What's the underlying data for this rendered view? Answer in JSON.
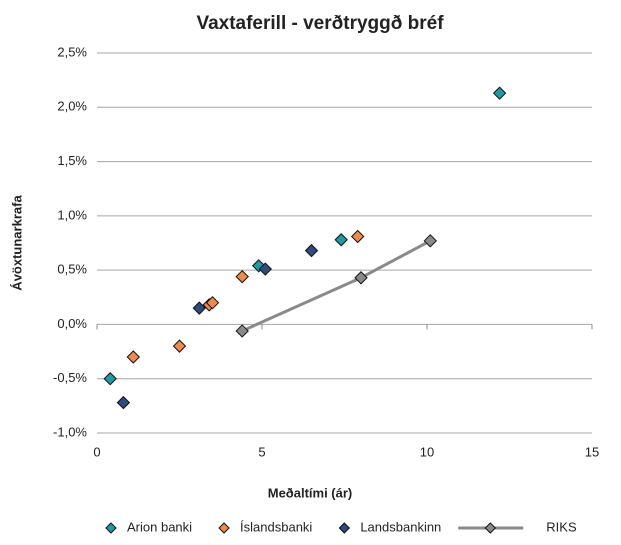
{
  "chart_data": {
    "type": "scatter",
    "title": "Vaxtaferill - verðtryggð bréf",
    "x_label": "Meðaltími (ár)",
    "y_label": "Ávöxtunarkrafa",
    "xlim": [
      0,
      15
    ],
    "xticks": [
      0,
      5,
      10,
      15
    ],
    "ylim": [
      -1.0,
      2.5
    ],
    "yticks": [
      {
        "value": -1.0,
        "label": "-1,0%"
      },
      {
        "value": -0.5,
        "label": "-0,5%"
      },
      {
        "value": 0,
        "label": "0,0%"
      },
      {
        "value": 0.5,
        "label": "0,5%"
      },
      {
        "value": 1.0,
        "label": "1,0%"
      },
      {
        "value": 1.5,
        "label": "1,5%"
      },
      {
        "value": 2.0,
        "label": "2,0%"
      },
      {
        "value": 2.5,
        "label": "2,5%"
      }
    ],
    "grid": true,
    "legend": "bottom",
    "series": [
      {
        "name": "Arion banki",
        "color": "#1e9aa5",
        "line": false,
        "x": [
          0.4,
          4.9,
          7.4,
          12.2
        ],
        "values": [
          -0.5,
          0.54,
          0.78,
          2.13
        ]
      },
      {
        "name": "Íslandsbanki",
        "color": "#f08a4b",
        "line": false,
        "x": [
          1.1,
          2.5,
          3.4,
          3.5,
          4.4,
          7.9
        ],
        "values": [
          -0.3,
          -0.2,
          0.18,
          0.2,
          0.44,
          0.81
        ]
      },
      {
        "name": "Landsbankinn",
        "color": "#2f4b7c",
        "line": false,
        "x": [
          0.8,
          3.1,
          5.1,
          6.5
        ],
        "values": [
          -0.72,
          0.15,
          0.51,
          0.68
        ]
      },
      {
        "name": "RIKS",
        "color": "#8a8a8a",
        "line": true,
        "x": [
          4.4,
          8.0,
          10.1
        ],
        "values": [
          -0.06,
          0.43,
          0.77
        ]
      }
    ]
  }
}
